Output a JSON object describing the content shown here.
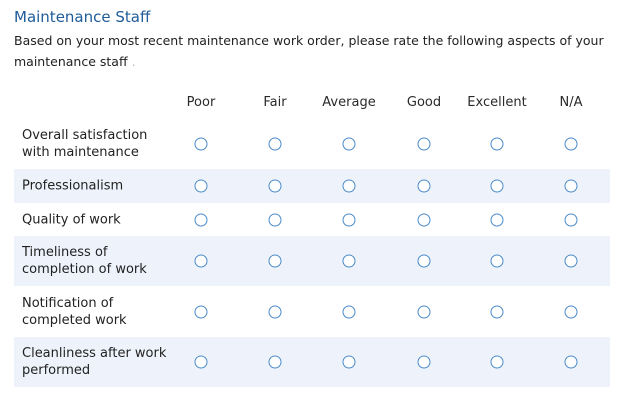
{
  "section": {
    "title": "Maintenance Staff",
    "description": "Based on your most recent maintenance work order, please rate the following aspects of your maintenance staff",
    "description_trailing": "."
  },
  "columns": [
    "Poor",
    "Fair",
    "Average",
    "Good",
    "Excellent",
    "N/A"
  ],
  "rows": [
    {
      "label": "Overall satisfaction with maintenance",
      "selected": null
    },
    {
      "label": "Professionalism",
      "selected": null
    },
    {
      "label": "Quality of work",
      "selected": null
    },
    {
      "label": "Timeliness of completion of work",
      "selected": null
    },
    {
      "label": "Notification of completed work",
      "selected": null
    },
    {
      "label": "Cleanliness after work performed",
      "selected": null
    }
  ],
  "colors": {
    "title": "#1f5c99",
    "row_stripe": "#eef3fb",
    "radio_border": "#4a8ac9"
  }
}
